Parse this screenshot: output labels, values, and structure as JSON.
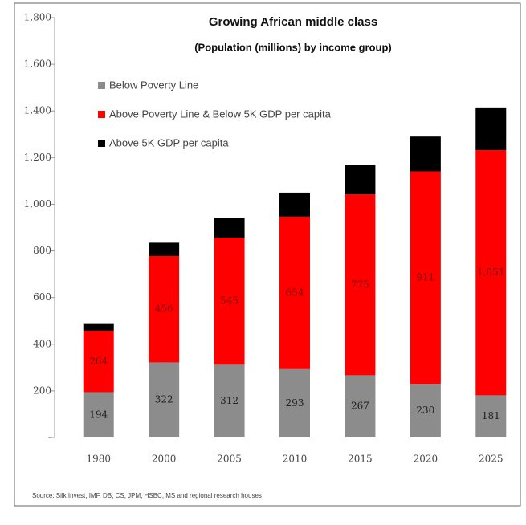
{
  "chart_data": {
    "type": "stacked-bar",
    "title": "Growing African middle class",
    "subtitle": "(Population (millions) by income group)",
    "categories": [
      "1980",
      "2000",
      "2005",
      "2010",
      "2015",
      "2020",
      "2025"
    ],
    "series": [
      {
        "name": "Below Poverty Line",
        "color": "#8c8c8c",
        "values": [
          194,
          322,
          312,
          293,
          267,
          230,
          181
        ]
      },
      {
        "name": "Above Poverty Line & Below 5K GDP per capita",
        "color": "#ff0000",
        "values": [
          264,
          456,
          545,
          654,
          775,
          911,
          1051
        ],
        "value_labels": [
          "264",
          "456",
          "545",
          "654",
          "775",
          "911",
          "1,051"
        ]
      },
      {
        "name": "Above 5K GDP per capita",
        "color": "#000000",
        "values": [
          32,
          57,
          83,
          103,
          128,
          149,
          183
        ]
      }
    ],
    "ylim": [
      0,
      1800
    ],
    "yticks": [
      {
        "value": 0,
        "label": "-"
      },
      200,
      400,
      600,
      800,
      {
        "value": 1000,
        "label": "1,000"
      },
      {
        "value": 1200,
        "label": "1,200"
      },
      {
        "value": 1400,
        "label": "1,400"
      },
      {
        "value": 1600,
        "label": "1,600"
      },
      {
        "value": 1800,
        "label": "1,800"
      }
    ],
    "legend": "top-left",
    "source": "Source: Silk Invest, IMF, DB, CS, JPM, HSBC, MS and regional research houses"
  }
}
